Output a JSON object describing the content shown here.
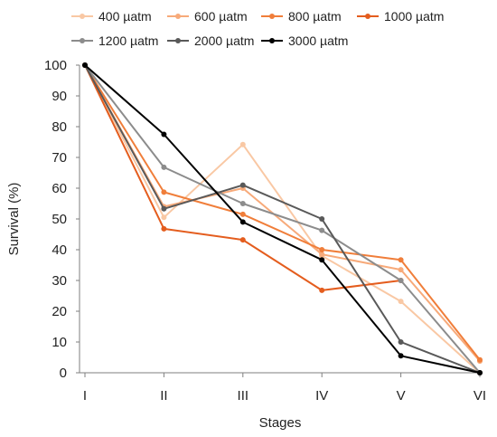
{
  "chart_data": {
    "type": "line",
    "title": "",
    "xlabel": "Stages",
    "ylabel": "Survival (%)",
    "categories": [
      "I",
      "II",
      "III",
      "IV",
      "V",
      "VI"
    ],
    "ylim": [
      0,
      100
    ],
    "yticks": [
      0,
      10,
      20,
      30,
      40,
      50,
      60,
      70,
      80,
      90,
      100
    ],
    "grid": false,
    "legend_position": "top",
    "series": [
      {
        "name": "400 µatm",
        "color": "#f9c8a4",
        "values": [
          100,
          50.5,
          74.2,
          38.0,
          23.2,
          0.0
        ]
      },
      {
        "name": "600 µatm",
        "color": "#f7aa7a",
        "values": [
          100,
          54.0,
          60.0,
          38.5,
          33.5,
          3.8
        ]
      },
      {
        "name": "800 µatm",
        "color": "#f07e3a",
        "values": [
          100,
          58.7,
          51.5,
          40.0,
          36.7,
          4.2
        ]
      },
      {
        "name": "1000 µatm",
        "color": "#e45d1e",
        "values": [
          100,
          46.8,
          43.2,
          26.8,
          30.0,
          null
        ]
      },
      {
        "name": "1200 µatm",
        "color": "#8c8c8c",
        "values": [
          100,
          66.8,
          55.0,
          46.3,
          30.0,
          0.0
        ]
      },
      {
        "name": "2000 µatm",
        "color": "#595959",
        "values": [
          100,
          53.3,
          61.0,
          50.0,
          10.0,
          0.0
        ]
      },
      {
        "name": "3000 µatm",
        "color": "#000000",
        "values": [
          100,
          77.5,
          49.0,
          36.7,
          5.5,
          0.0
        ]
      }
    ]
  }
}
